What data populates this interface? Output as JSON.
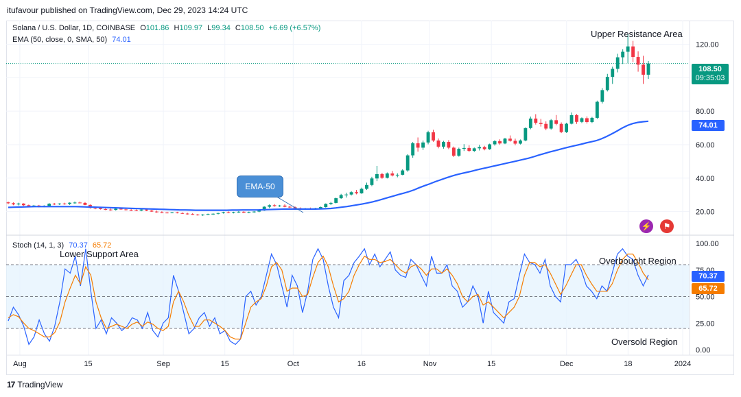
{
  "header": {
    "published": "itufavour published on TradingView.com, Dec 29, 2023 14:24 UTC"
  },
  "legend": {
    "symbol": "Solana / U.S. Dollar, 1D, COINBASE",
    "o_label": "O",
    "o_value": "101.86",
    "h_label": "H",
    "h_value": "109.97",
    "l_label": "L",
    "l_value": "99.34",
    "c_label": "C",
    "c_value": "108.50",
    "change": "+6.69 (+6.57%)",
    "ema_label": "EMA (50, close, 0, SMA, 50)",
    "ema_value": "74.01"
  },
  "stoch_legend": {
    "label": "Stoch (14, 1, 3)",
    "k_value": "70.37",
    "d_value": "65.72"
  },
  "annotations": {
    "upper_resistance": "Upper Resistance Area",
    "lower_support": "Lower Support Area",
    "overbought": "Overbought Region",
    "oversold": "Oversold Region",
    "ema_callout": "EMA-50"
  },
  "price_tags": {
    "last_price": "108.50",
    "countdown": "09:35:03",
    "ema": "74.01",
    "k": "70.37",
    "d": "65.72"
  },
  "footer": {
    "brand": "TradingView"
  },
  "colors": {
    "up": "#089981",
    "down": "#f23645",
    "ema": "#2962ff",
    "k": "#2962ff",
    "d": "#f57c00",
    "band": "#e3f2fd"
  },
  "chart_data": [
    {
      "type": "candlestick",
      "title": "Solana / U.S. Dollar, 1D, COINBASE",
      "ylim": [
        10,
        128
      ],
      "y_ticks": [
        "20.00",
        "40.00",
        "60.00",
        "80.00",
        "100.00",
        "120.00"
      ],
      "x_tick_labels": [
        "Aug",
        "15",
        "Sep",
        "15",
        "Oct",
        "16",
        "Nov",
        "15",
        "Dec",
        "18",
        "2024"
      ],
      "last_price": 108.5,
      "ohlc": [
        [
          25.5,
          26.0,
          24.4,
          25.0
        ],
        [
          25.0,
          25.5,
          23.8,
          24.3
        ],
        [
          24.3,
          25.3,
          23.7,
          24.8
        ],
        [
          24.8,
          25.0,
          23.4,
          23.8
        ],
        [
          23.8,
          24.2,
          22.5,
          23.1
        ],
        [
          23.1,
          24.0,
          22.7,
          23.6
        ],
        [
          23.6,
          24.0,
          22.5,
          23.0
        ],
        [
          23.0,
          23.8,
          22.6,
          23.4
        ],
        [
          23.4,
          25.1,
          23.2,
          24.7
        ],
        [
          24.7,
          25.2,
          23.9,
          24.4
        ],
        [
          24.4,
          25.0,
          24.0,
          24.8
        ],
        [
          24.8,
          25.3,
          24.1,
          24.6
        ],
        [
          24.6,
          25.5,
          24.0,
          25.3
        ],
        [
          25.3,
          26.0,
          24.7,
          25.4
        ],
        [
          25.4,
          26.0,
          24.9,
          25.2
        ],
        [
          25.2,
          25.7,
          23.8,
          24.0
        ],
        [
          24.0,
          24.3,
          21.8,
          22.2
        ],
        [
          22.2,
          22.8,
          21.4,
          22.0
        ],
        [
          22.0,
          22.6,
          21.2,
          21.5
        ],
        [
          21.5,
          22.0,
          20.8,
          21.2
        ],
        [
          21.2,
          21.8,
          20.5,
          21.0
        ],
        [
          21.0,
          21.9,
          20.6,
          21.7
        ],
        [
          21.7,
          22.2,
          21.0,
          21.3
        ],
        [
          21.3,
          21.8,
          20.6,
          21.0
        ],
        [
          21.0,
          21.6,
          20.3,
          20.8
        ],
        [
          20.8,
          21.3,
          20.3,
          20.6
        ],
        [
          20.6,
          21.5,
          20.2,
          21.2
        ],
        [
          21.2,
          21.5,
          20.3,
          20.6
        ],
        [
          20.6,
          21.0,
          19.8,
          20.0
        ],
        [
          20.0,
          20.6,
          19.3,
          19.6
        ],
        [
          19.6,
          20.2,
          19.0,
          19.4
        ],
        [
          19.4,
          19.9,
          18.9,
          19.3
        ],
        [
          19.3,
          19.8,
          19.0,
          19.5
        ],
        [
          19.5,
          19.9,
          18.9,
          19.1
        ],
        [
          19.1,
          19.5,
          18.6,
          18.8
        ],
        [
          18.8,
          19.3,
          18.2,
          18.5
        ],
        [
          18.5,
          19.0,
          18.0,
          18.2
        ],
        [
          18.2,
          18.6,
          17.6,
          17.8
        ],
        [
          17.8,
          18.5,
          17.4,
          18.2
        ],
        [
          18.2,
          18.8,
          17.9,
          18.5
        ],
        [
          18.5,
          19.0,
          18.0,
          18.7
        ],
        [
          18.7,
          19.3,
          18.3,
          19.1
        ],
        [
          19.1,
          19.9,
          18.8,
          19.6
        ],
        [
          19.6,
          20.1,
          19.0,
          19.3
        ],
        [
          19.3,
          19.9,
          18.9,
          19.7
        ],
        [
          19.7,
          20.3,
          19.2,
          19.9
        ],
        [
          19.9,
          20.2,
          19.1,
          19.4
        ],
        [
          19.4,
          20.0,
          19.0,
          19.7
        ],
        [
          19.7,
          20.3,
          19.3,
          20.0
        ],
        [
          20.0,
          20.9,
          19.6,
          20.6
        ],
        [
          20.6,
          23.2,
          20.4,
          22.9
        ],
        [
          22.9,
          24.3,
          22.1,
          23.8
        ],
        [
          23.8,
          24.5,
          22.9,
          23.3
        ],
        [
          23.3,
          24.0,
          22.8,
          23.6
        ],
        [
          23.6,
          24.4,
          22.6,
          22.9
        ],
        [
          22.9,
          23.5,
          22.2,
          22.6
        ],
        [
          22.6,
          23.1,
          21.7,
          22.0
        ],
        [
          22.0,
          22.5,
          21.2,
          21.5
        ],
        [
          21.5,
          22.2,
          21.0,
          21.8
        ],
        [
          21.8,
          22.4,
          21.3,
          21.6
        ],
        [
          21.6,
          22.3,
          21.2,
          22.0
        ],
        [
          22.0,
          23.0,
          21.7,
          22.7
        ],
        [
          22.7,
          24.9,
          22.4,
          24.6
        ],
        [
          24.6,
          25.8,
          23.9,
          25.2
        ],
        [
          25.2,
          28.3,
          24.9,
          28.0
        ],
        [
          28.0,
          30.6,
          27.6,
          29.9
        ],
        [
          29.9,
          31.3,
          28.4,
          30.2
        ],
        [
          30.2,
          32.2,
          29.6,
          31.6
        ],
        [
          31.6,
          32.9,
          30.3,
          30.9
        ],
        [
          30.9,
          34.3,
          30.6,
          33.6
        ],
        [
          33.6,
          37.3,
          32.9,
          35.9
        ],
        [
          35.9,
          40.8,
          35.2,
          39.8
        ],
        [
          39.8,
          47.3,
          38.2,
          42.4
        ],
        [
          42.4,
          43.2,
          39.6,
          40.2
        ],
        [
          40.2,
          43.4,
          39.8,
          42.8
        ],
        [
          42.8,
          44.3,
          41.0,
          41.6
        ],
        [
          41.6,
          42.9,
          40.5,
          42.0
        ],
        [
          42.0,
          45.3,
          41.7,
          44.6
        ],
        [
          44.6,
          54.3,
          43.8,
          53.6
        ],
        [
          53.6,
          61.6,
          52.2,
          60.8
        ],
        [
          60.8,
          64.3,
          55.8,
          58.2
        ],
        [
          58.2,
          62.5,
          56.8,
          61.3
        ],
        [
          61.3,
          68.3,
          60.2,
          67.4
        ],
        [
          67.4,
          68.9,
          61.7,
          62.5
        ],
        [
          62.5,
          63.7,
          57.8,
          58.8
        ],
        [
          58.8,
          62.3,
          57.6,
          61.6
        ],
        [
          61.6,
          62.7,
          57.3,
          58.2
        ],
        [
          58.2,
          58.9,
          52.6,
          53.4
        ],
        [
          53.4,
          58.2,
          52.8,
          57.5
        ],
        [
          57.5,
          60.3,
          56.2,
          58.0
        ],
        [
          58.0,
          59.6,
          55.6,
          56.3
        ],
        [
          56.3,
          58.3,
          55.6,
          57.8
        ],
        [
          57.8,
          59.9,
          56.5,
          58.6
        ],
        [
          58.6,
          59.3,
          56.6,
          57.3
        ],
        [
          57.3,
          60.6,
          56.9,
          60.2
        ],
        [
          60.2,
          62.7,
          59.4,
          62.1
        ],
        [
          62.1,
          63.2,
          60.0,
          60.7
        ],
        [
          60.7,
          64.1,
          60.3,
          63.6
        ],
        [
          63.6,
          65.5,
          61.8,
          62.3
        ],
        [
          62.3,
          63.6,
          59.6,
          60.6
        ],
        [
          60.6,
          63.1,
          60.1,
          62.5
        ],
        [
          62.5,
          70.3,
          62.0,
          69.9
        ],
        [
          69.9,
          76.8,
          69.2,
          75.6
        ],
        [
          75.6,
          78.2,
          72.0,
          73.1
        ],
        [
          73.1,
          75.4,
          70.8,
          72.4
        ],
        [
          72.4,
          73.9,
          68.6,
          69.6
        ],
        [
          69.6,
          75.3,
          69.0,
          74.6
        ],
        [
          74.6,
          77.7,
          71.6,
          72.4
        ],
        [
          72.4,
          73.3,
          66.9,
          67.5
        ],
        [
          67.5,
          73.1,
          67.0,
          72.5
        ],
        [
          72.5,
          79.2,
          72.1,
          77.6
        ],
        [
          77.6,
          78.3,
          72.4,
          73.6
        ],
        [
          73.6,
          76.3,
          72.9,
          75.8
        ],
        [
          75.8,
          76.9,
          72.6,
          73.5
        ],
        [
          73.5,
          76.6,
          72.9,
          76.0
        ],
        [
          76.0,
          86.3,
          75.4,
          85.6
        ],
        [
          85.6,
          93.8,
          84.6,
          92.6
        ],
        [
          92.6,
          102.3,
          91.8,
          100.5
        ],
        [
          100.5,
          106.6,
          96.3,
          105.3
        ],
        [
          105.3,
          114.3,
          103.2,
          112.2
        ],
        [
          112.2,
          117.0,
          108.2,
          115.5
        ],
        [
          115.5,
          126.0,
          108.6,
          118.7
        ],
        [
          118.7,
          122.0,
          109.4,
          112.4
        ],
        [
          112.4,
          115.8,
          103.6,
          107.8
        ],
        [
          107.8,
          113.1,
          96.3,
          101.8
        ],
        [
          101.8,
          109.97,
          99.34,
          108.5
        ]
      ],
      "ema50": [
        22.5,
        22.6,
        22.7,
        22.8,
        22.9,
        23.0,
        23.0,
        23.0,
        23.0,
        23.0,
        23.0,
        23.0,
        23.0,
        23.0,
        22.9,
        22.8,
        22.7,
        22.6,
        22.5,
        22.4,
        22.3,
        22.2,
        22.1,
        22.0,
        21.9,
        21.8,
        21.7,
        21.6,
        21.5,
        21.4,
        21.3,
        21.2,
        21.1,
        21.0,
        21.0,
        20.9,
        20.8,
        20.8,
        20.8,
        20.8,
        20.8,
        20.8,
        20.8,
        20.9,
        20.9,
        21.0,
        21.0,
        21.0,
        21.0,
        21.1,
        21.2,
        21.3,
        21.4,
        21.5,
        21.5,
        21.5,
        21.5,
        21.5,
        21.5,
        21.5,
        21.6,
        21.7,
        21.9,
        22.2,
        22.6,
        23.0,
        23.5,
        24.0,
        24.5,
        25.1,
        25.8,
        26.6,
        27.5,
        28.4,
        29.3,
        30.2,
        31.0,
        31.9,
        33.0,
        34.3,
        35.5,
        36.6,
        37.8,
        38.9,
        40.0,
        41.0,
        41.9,
        42.7,
        43.4,
        44.1,
        44.9,
        45.6,
        46.3,
        47.0,
        47.7,
        48.4,
        49.1,
        49.8,
        50.5,
        51.2,
        51.9,
        52.8,
        53.8,
        54.7,
        55.6,
        56.4,
        57.2,
        58.0,
        58.8,
        59.5,
        60.2,
        61.0,
        61.7,
        62.4,
        63.5,
        64.9,
        66.5,
        68.2,
        70.0,
        71.5,
        72.6,
        73.3,
        73.7,
        74.01
      ]
    },
    {
      "type": "line",
      "title": "Stoch (14, 1, 3)",
      "ylim": [
        0,
        100
      ],
      "y_ticks": [
        "0.00",
        "25.00",
        "50.00",
        "75.00",
        "100.00"
      ],
      "levels": [
        80,
        50,
        20
      ],
      "series": [
        {
          "name": "K",
          "values": [
            27,
            40,
            33,
            22,
            5,
            12,
            28,
            15,
            8,
            22,
            45,
            76,
            72,
            88,
            60,
            95,
            55,
            20,
            28,
            15,
            30,
            25,
            18,
            22,
            30,
            28,
            20,
            35,
            18,
            12,
            25,
            30,
            70,
            55,
            35,
            15,
            20,
            30,
            35,
            22,
            30,
            15,
            18,
            8,
            5,
            10,
            50,
            55,
            42,
            50,
            70,
            90,
            80,
            60,
            40,
            70,
            60,
            35,
            55,
            85,
            95,
            85,
            60,
            40,
            30,
            65,
            70,
            82,
            88,
            95,
            80,
            90,
            78,
            85,
            92,
            75,
            70,
            68,
            85,
            80,
            70,
            60,
            88,
            72,
            72,
            80,
            60,
            55,
            40,
            45,
            60,
            50,
            25,
            55,
            35,
            30,
            25,
            45,
            48,
            70,
            90,
            82,
            80,
            72,
            85,
            60,
            50,
            45,
            80,
            80,
            85,
            75,
            60,
            55,
            48,
            60,
            55,
            72,
            90,
            95,
            88,
            85,
            70,
            60,
            70.37
          ]
        },
        {
          "name": "D",
          "values": [
            30,
            33,
            31,
            25,
            20,
            18,
            15,
            12,
            12,
            16,
            26,
            45,
            58,
            70,
            62,
            78,
            70,
            45,
            30,
            20,
            22,
            24,
            22,
            20,
            24,
            26,
            22,
            26,
            24,
            20,
            18,
            22,
            45,
            55,
            45,
            32,
            22,
            22,
            28,
            28,
            25,
            22,
            18,
            12,
            10,
            10,
            25,
            40,
            45,
            48,
            60,
            78,
            82,
            75,
            55,
            58,
            58,
            50,
            52,
            68,
            82,
            88,
            78,
            60,
            45,
            48,
            55,
            70,
            80,
            88,
            85,
            85,
            82,
            83,
            85,
            80,
            75,
            72,
            78,
            80,
            76,
            70,
            76,
            76,
            72,
            76,
            70,
            62,
            50,
            45,
            50,
            52,
            42,
            45,
            40,
            35,
            30,
            35,
            40,
            50,
            70,
            82,
            82,
            78,
            80,
            72,
            62,
            52,
            60,
            70,
            80,
            80,
            70,
            62,
            55,
            55,
            55,
            62,
            75,
            85,
            90,
            90,
            82,
            72,
            65.72
          ]
        }
      ]
    }
  ]
}
